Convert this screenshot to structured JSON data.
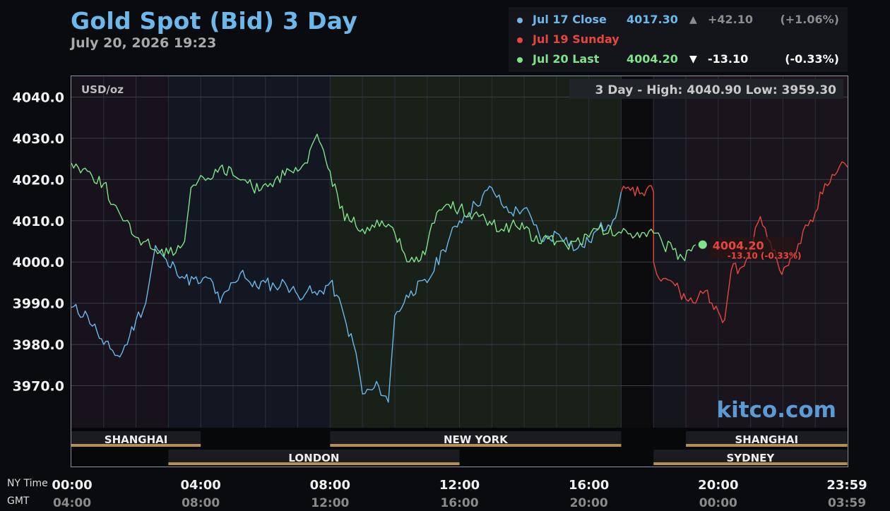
{
  "header": {
    "title": "Gold Spot (Bid) 3 Day",
    "timestamp": "July 20, 2026 19:23"
  },
  "legend": [
    {
      "label": "Jul 17 Close",
      "price": "4017.30",
      "arrow": "▲",
      "change": "+42.10",
      "pct": "(+1.06%)",
      "color": "#6ab8ec",
      "text_color": "#6ab8ec",
      "change_color": "#8c8c8c"
    },
    {
      "label": "Jul 19 Sunday",
      "price": "",
      "arrow": "",
      "change": "",
      "pct": "",
      "color": "#e8463c",
      "text_color": "#e8463c",
      "change_color": "#8c8c8c"
    },
    {
      "label": "Jul 20 Last",
      "price": "4004.20",
      "arrow": "▼",
      "change": "-13.10",
      "pct": "(-0.33%)",
      "color": "#7fe38a",
      "text_color": "#7fe38a",
      "change_color": "#ffffff"
    }
  ],
  "plot_text": {
    "unit": "USD/oz",
    "high_low": "3 Day - High: 4040.90  Low: 3959.30",
    "watermark": "kitco.com",
    "last_price": "4004.20",
    "last_change": "-13.10 (-0.33%)"
  },
  "markets": {
    "top": [
      {
        "name": "SHANGHAI",
        "start": 0,
        "end": 4
      },
      {
        "name": "NEW YORK",
        "start": 8,
        "end": 17
      },
      {
        "name": "SHANGHAI",
        "start": 19,
        "end": 23.99
      }
    ],
    "bottom": [
      {
        "name": "LONDON",
        "start": 3,
        "end": 12
      },
      {
        "name": "SYDNEY",
        "start": 18,
        "end": 23.99
      }
    ]
  },
  "footer": {
    "ny_label": "NY Time",
    "gmt_label": "GMT",
    "ny_ticks": [
      "00:00",
      "04:00",
      "08:00",
      "12:00",
      "16:00",
      "20:00",
      "23:59"
    ],
    "gmt_ticks": [
      "04:00",
      "08:00",
      "12:00",
      "16:00",
      "20:00",
      "00:00",
      "03:59"
    ]
  },
  "chart_data": {
    "type": "line",
    "title": "Gold Spot (Bid) 3 Day",
    "xlabel": "NY Time",
    "ylabel": "USD/oz",
    "xlim": [
      0,
      24
    ],
    "ylim": [
      3957,
      4043
    ],
    "y_ticks": [
      "4040.0",
      "4030.0",
      "4020.0",
      "4010.0",
      "4000.0",
      "3990.0",
      "3980.0",
      "3970.0"
    ],
    "y_tick_values": [
      4040,
      4030,
      4020,
      4010,
      4000,
      3990,
      3980,
      3970
    ],
    "x_ticks": [
      0,
      4,
      8,
      12,
      16,
      20,
      24
    ],
    "grid": true,
    "series": [
      {
        "name": "Jul 17 Close",
        "color": "#6ab8ec",
        "x": [
          0,
          0.5,
          0.8,
          1.0,
          1.2,
          1.5,
          1.8,
          2.0,
          2.3,
          2.6,
          3.0,
          3.2,
          3.5,
          4.0,
          4.3,
          4.6,
          5.0,
          5.3,
          5.6,
          6.0,
          6.3,
          6.6,
          7.0,
          7.3,
          7.6,
          8.0,
          8.2,
          8.5,
          8.8,
          9.0,
          9.3,
          9.5,
          9.8,
          10.0,
          10.5,
          11.0,
          11.5,
          12.0,
          12.5,
          13.0,
          13.3,
          13.6,
          14.0,
          14.3,
          14.6,
          15.0,
          15.3,
          15.6,
          16.0,
          16.3,
          16.6,
          16.9,
          17.0
        ],
        "y": [
          3989,
          3987,
          3983,
          3980,
          3979,
          3977,
          3982,
          3986,
          3990,
          4004,
          3999,
          3999,
          3996,
          3995,
          3996,
          3990,
          3995,
          3998,
          3994,
          3995,
          3994,
          3995,
          3992,
          3993,
          3992,
          3995,
          3992,
          3985,
          3978,
          3968,
          3969,
          3970,
          3966,
          3987,
          3993,
          3995,
          4003,
          4010,
          4014,
          4018,
          4014,
          4012,
          4013,
          4009,
          4005,
          4007,
          4006,
          4003,
          4005,
          4008,
          4009,
          4013,
          4017
        ]
      },
      {
        "name": "Jul 19 Sunday",
        "color": "#e8463c",
        "x": [
          17.0,
          18.0,
          18.0,
          18.1,
          18.3,
          18.6,
          19.0,
          19.3,
          19.6,
          20.0,
          20.2,
          20.4,
          20.8,
          21.0,
          21.3,
          21.6,
          21.9,
          22.1,
          22.4,
          22.7,
          23.0,
          23.3,
          23.6,
          23.9,
          24.0
        ],
        "y": [
          4017,
          4017,
          4000,
          3997,
          3996,
          3995,
          3991,
          3990,
          3993,
          3988,
          3986,
          3998,
          3999,
          4003,
          4011,
          4005,
          3998,
          3999,
          4002,
          4009,
          4012,
          4019,
          4021,
          4024,
          4023
        ]
      },
      {
        "name": "Jul 20 Last",
        "color": "#7fe38a",
        "x": [
          0,
          0.5,
          1.0,
          1.3,
          1.6,
          2.0,
          2.3,
          2.6,
          3.0,
          3.3,
          3.5,
          3.7,
          4.0,
          4.3,
          4.6,
          5.0,
          5.3,
          5.6,
          6.0,
          6.3,
          6.6,
          7.0,
          7.3,
          7.6,
          7.8,
          8.0,
          8.3,
          8.6,
          9.0,
          9.3,
          9.6,
          10.0,
          10.3,
          10.6,
          11.0,
          11.3,
          11.6,
          12.0,
          12.3,
          12.6,
          13.0,
          13.3,
          13.6,
          14.0,
          14.3,
          14.6,
          15.0,
          15.3,
          15.6,
          16.0,
          16.3,
          16.6,
          17.0,
          18.0,
          18.3,
          18.6,
          18.9,
          19.1,
          19.3
        ],
        "y": [
          4024,
          4022,
          4019,
          4014,
          4010,
          4006,
          4005,
          4003,
          4002,
          4004,
          4005,
          4018,
          4021,
          4020,
          4023,
          4021,
          4020,
          4018,
          4019,
          4020,
          4021,
          4022,
          4024,
          4031,
          4027,
          4022,
          4013,
          4010,
          4008,
          4009,
          4010,
          4007,
          4002,
          4000,
          4004,
          4012,
          4014,
          4013,
          4012,
          4011,
          4009,
          4008,
          4009,
          4008,
          4005,
          4006,
          4005,
          4004,
          4005,
          4006,
          4008,
          4007,
          4007,
          4007,
          4004,
          4003,
          4001,
          4003,
          4004.2
        ]
      }
    ]
  }
}
